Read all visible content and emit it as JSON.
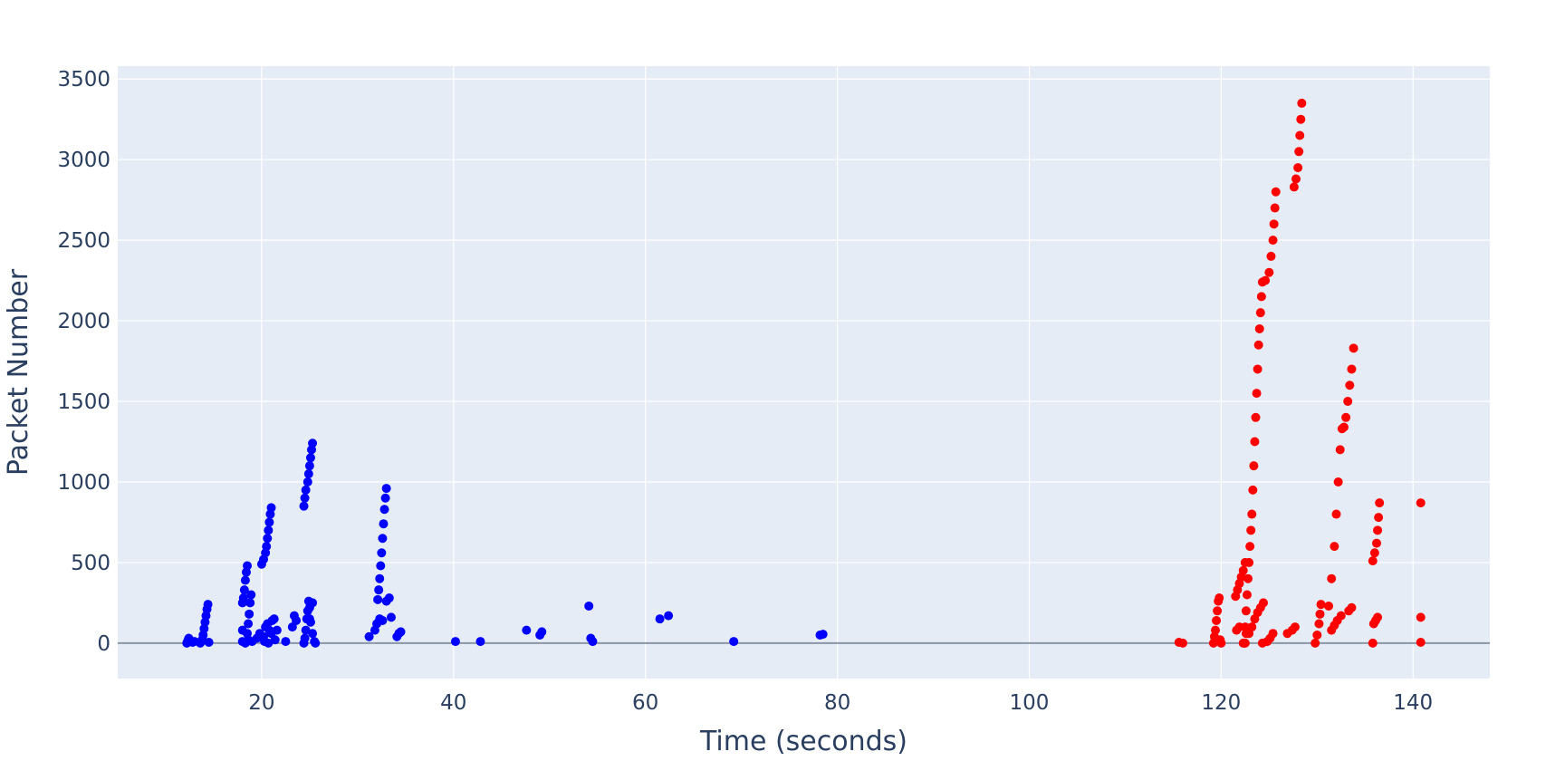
{
  "chart_data": {
    "type": "scatter",
    "title": "",
    "xlabel": "Time (seconds)",
    "ylabel": "Packet Number",
    "xlim": [
      5,
      148
    ],
    "ylim": [
      -220,
      3580
    ],
    "x_ticks": [
      20,
      40,
      60,
      80,
      100,
      120,
      140
    ],
    "y_ticks": [
      0,
      500,
      1000,
      1500,
      2000,
      2500,
      3000,
      3500
    ],
    "grid": true,
    "legend": "none",
    "colors": {
      "plot_bg": "#e5ecf6",
      "grid": "#ffffff",
      "zero_line": "#8a96a8",
      "series_1": "#0000ff",
      "series_2": "#ff0000"
    },
    "series": [
      {
        "color": "#0000ff",
        "points": [
          [
            12.2,
            0
          ],
          [
            12.3,
            15
          ],
          [
            12.4,
            30
          ],
          [
            12.5,
            20
          ],
          [
            12.8,
            5
          ],
          [
            13.0,
            10
          ],
          [
            13.6,
            0
          ],
          [
            13.8,
            20
          ],
          [
            13.9,
            50
          ],
          [
            14.0,
            90
          ],
          [
            14.1,
            130
          ],
          [
            14.2,
            170
          ],
          [
            14.3,
            210
          ],
          [
            14.4,
            240
          ],
          [
            14.5,
            5
          ],
          [
            18.0,
            10
          ],
          [
            18.0,
            80
          ],
          [
            18.0,
            250
          ],
          [
            18.1,
            280
          ],
          [
            18.2,
            330
          ],
          [
            18.3,
            390
          ],
          [
            18.4,
            440
          ],
          [
            18.5,
            480
          ],
          [
            18.3,
            0
          ],
          [
            18.5,
            60
          ],
          [
            18.6,
            120
          ],
          [
            18.7,
            180
          ],
          [
            18.8,
            250
          ],
          [
            18.9,
            300
          ],
          [
            18.6,
            20
          ],
          [
            19.0,
            10
          ],
          [
            19.5,
            30
          ],
          [
            19.8,
            60
          ],
          [
            20.2,
            40
          ],
          [
            20.4,
            100
          ],
          [
            20.6,
            120
          ],
          [
            20.8,
            80
          ],
          [
            20.3,
            10
          ],
          [
            20.7,
            0
          ],
          [
            21.1,
            140
          ],
          [
            21.3,
            150
          ],
          [
            21.0,
            60
          ],
          [
            21.4,
            20
          ],
          [
            21.6,
            80
          ],
          [
            20.0,
            490
          ],
          [
            20.2,
            520
          ],
          [
            20.4,
            560
          ],
          [
            20.5,
            600
          ],
          [
            20.6,
            650
          ],
          [
            20.7,
            700
          ],
          [
            20.8,
            750
          ],
          [
            20.9,
            800
          ],
          [
            21.0,
            840
          ],
          [
            22.5,
            10
          ],
          [
            23.2,
            100
          ],
          [
            23.4,
            170
          ],
          [
            23.6,
            140
          ],
          [
            24.4,
            0
          ],
          [
            24.5,
            30
          ],
          [
            24.6,
            80
          ],
          [
            24.7,
            150
          ],
          [
            24.8,
            200
          ],
          [
            24.9,
            260
          ],
          [
            25.0,
            220
          ],
          [
            25.1,
            130
          ],
          [
            25.3,
            60
          ],
          [
            25.5,
            10
          ],
          [
            25.0,
            150
          ],
          [
            25.3,
            250
          ],
          [
            25.6,
            0
          ],
          [
            24.4,
            850
          ],
          [
            24.5,
            900
          ],
          [
            24.6,
            950
          ],
          [
            24.8,
            1000
          ],
          [
            24.9,
            1050
          ],
          [
            25.0,
            1100
          ],
          [
            25.1,
            1150
          ],
          [
            25.2,
            1200
          ],
          [
            25.3,
            1240
          ],
          [
            31.2,
            40
          ],
          [
            31.8,
            80
          ],
          [
            32.0,
            120
          ],
          [
            32.3,
            150
          ],
          [
            32.6,
            140
          ],
          [
            32.1,
            270
          ],
          [
            32.2,
            330
          ],
          [
            32.3,
            400
          ],
          [
            32.4,
            480
          ],
          [
            32.5,
            560
          ],
          [
            32.6,
            650
          ],
          [
            32.7,
            740
          ],
          [
            32.8,
            830
          ],
          [
            32.9,
            900
          ],
          [
            33.0,
            960
          ],
          [
            33.0,
            260
          ],
          [
            33.3,
            280
          ],
          [
            33.5,
            160
          ],
          [
            34.1,
            40
          ],
          [
            34.3,
            60
          ],
          [
            34.5,
            70
          ],
          [
            40.2,
            10
          ],
          [
            42.8,
            10
          ],
          [
            47.6,
            80
          ],
          [
            49.0,
            50
          ],
          [
            49.2,
            70
          ],
          [
            54.1,
            230
          ],
          [
            54.3,
            30
          ],
          [
            54.5,
            10
          ],
          [
            61.5,
            150
          ],
          [
            62.4,
            170
          ],
          [
            69.2,
            10
          ],
          [
            78.2,
            50
          ],
          [
            78.5,
            55
          ]
        ]
      },
      {
        "color": "#ff0000",
        "points": [
          [
            115.6,
            5
          ],
          [
            116.0,
            0
          ],
          [
            119.2,
            0
          ],
          [
            119.3,
            40
          ],
          [
            119.4,
            80
          ],
          [
            119.5,
            140
          ],
          [
            119.6,
            200
          ],
          [
            119.7,
            260
          ],
          [
            119.8,
            280
          ],
          [
            119.9,
            20
          ],
          [
            120.0,
            0
          ],
          [
            121.5,
            290
          ],
          [
            121.7,
            330
          ],
          [
            121.9,
            370
          ],
          [
            122.1,
            410
          ],
          [
            122.3,
            450
          ],
          [
            122.5,
            500
          ],
          [
            121.6,
            80
          ],
          [
            121.9,
            100
          ],
          [
            122.3,
            0
          ],
          [
            122.5,
            0
          ],
          [
            122.6,
            60
          ],
          [
            122.4,
            0
          ],
          [
            122.5,
            100
          ],
          [
            122.6,
            200
          ],
          [
            122.7,
            300
          ],
          [
            122.8,
            400
          ],
          [
            122.9,
            500
          ],
          [
            123.0,
            600
          ],
          [
            123.1,
            700
          ],
          [
            123.2,
            800
          ],
          [
            123.3,
            950
          ],
          [
            123.4,
            1100
          ],
          [
            123.5,
            1250
          ],
          [
            123.6,
            1400
          ],
          [
            123.7,
            1550
          ],
          [
            123.8,
            1700
          ],
          [
            123.9,
            1850
          ],
          [
            124.0,
            1950
          ],
          [
            124.1,
            2050
          ],
          [
            124.2,
            2150
          ],
          [
            124.3,
            2240
          ],
          [
            122.9,
            60
          ],
          [
            123.2,
            100
          ],
          [
            123.5,
            150
          ],
          [
            123.8,
            190
          ],
          [
            124.1,
            220
          ],
          [
            124.4,
            250
          ],
          [
            124.3,
            0
          ],
          [
            124.8,
            10
          ],
          [
            125.1,
            30
          ],
          [
            125.4,
            60
          ],
          [
            124.6,
            2250
          ],
          [
            125.0,
            2300
          ],
          [
            125.2,
            2400
          ],
          [
            125.4,
            2500
          ],
          [
            125.5,
            2600
          ],
          [
            125.6,
            2700
          ],
          [
            125.7,
            2800
          ],
          [
            126.9,
            60
          ],
          [
            127.4,
            80
          ],
          [
            127.7,
            100
          ],
          [
            127.6,
            2830
          ],
          [
            127.8,
            2880
          ],
          [
            128.0,
            2950
          ],
          [
            128.1,
            3050
          ],
          [
            128.2,
            3150
          ],
          [
            128.3,
            3250
          ],
          [
            128.4,
            3350
          ],
          [
            129.8,
            0
          ],
          [
            130.0,
            50
          ],
          [
            130.2,
            120
          ],
          [
            130.3,
            180
          ],
          [
            130.4,
            240
          ],
          [
            131.2,
            230
          ],
          [
            131.5,
            400
          ],
          [
            131.8,
            600
          ],
          [
            132.0,
            800
          ],
          [
            132.2,
            1000
          ],
          [
            132.4,
            1200
          ],
          [
            132.6,
            1330
          ],
          [
            131.5,
            80
          ],
          [
            131.8,
            110
          ],
          [
            132.1,
            140
          ],
          [
            132.5,
            170
          ],
          [
            133.3,
            200
          ],
          [
            133.6,
            220
          ],
          [
            132.8,
            1340
          ],
          [
            133.0,
            1400
          ],
          [
            133.2,
            1500
          ],
          [
            133.4,
            1600
          ],
          [
            133.6,
            1700
          ],
          [
            133.8,
            1830
          ],
          [
            135.8,
            0
          ],
          [
            135.9,
            120
          ],
          [
            136.1,
            140
          ],
          [
            136.3,
            160
          ],
          [
            135.8,
            510
          ],
          [
            136.0,
            560
          ],
          [
            136.2,
            620
          ],
          [
            136.3,
            700
          ],
          [
            136.4,
            780
          ],
          [
            136.5,
            870
          ],
          [
            140.8,
            870
          ],
          [
            140.8,
            160
          ],
          [
            140.8,
            5
          ]
        ]
      }
    ]
  }
}
